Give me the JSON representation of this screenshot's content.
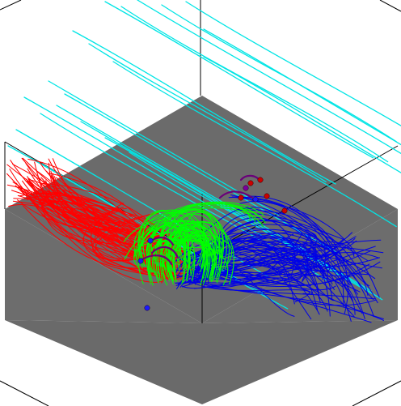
{
  "visualization": {
    "kind": "3d-field-line-rendering",
    "background_color": "#ffffff",
    "floor_color": "#6b6b6b",
    "floor_shadow_color": "#4a4a4a",
    "box_edge_color": "#000000",
    "colors": {
      "open_field_lines": "#00e5e5",
      "red_field_lines": "#ff0000",
      "green_field_lines": "#00ff00",
      "blue_field_lines": "#0000e6",
      "purple_loops": "#6a007a",
      "marker_red": "#cc0000",
      "marker_blue": "#1a1aff",
      "marker_purple": "#7a00a0"
    }
  }
}
